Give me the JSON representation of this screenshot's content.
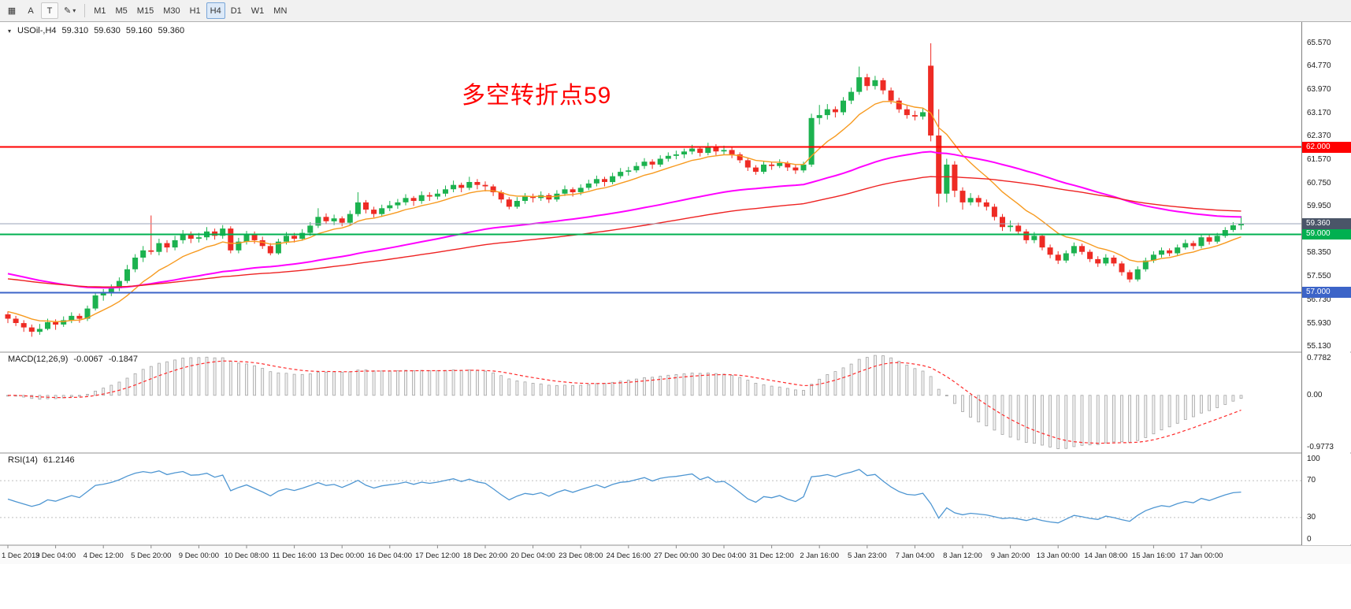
{
  "toolbar": {
    "buttons": [
      {
        "name": "charts",
        "glyph": "▦",
        "framed": false
      },
      {
        "name": "cursor-tool",
        "glyph": "A",
        "framed": false
      },
      {
        "name": "text-tool",
        "glyph": "T",
        "framed": true
      },
      {
        "name": "draw-tools",
        "glyph": "✎",
        "framed": false,
        "caret": true
      }
    ],
    "caret": "▾",
    "timeframes": [
      "M1",
      "M5",
      "M15",
      "M30",
      "H1",
      "H4",
      "D1",
      "W1",
      "MN"
    ],
    "active_timeframe": "H4"
  },
  "icons": {
    "title_marker": "▾"
  },
  "symbol_header": {
    "symbol": "USOil-,H4",
    "open": "59.310",
    "high": "59.630",
    "low": "59.160",
    "close": "59.360"
  },
  "annotation": {
    "text": "多空转折点59",
    "color": "#ff0000"
  },
  "price_axis": {
    "labels": [
      "65.570",
      "64.770",
      "63.970",
      "63.170",
      "62.370",
      "61.570",
      "60.750",
      "59.950",
      "58.350",
      "57.550",
      "56.730",
      "55.930",
      "55.130"
    ]
  },
  "levels": [
    {
      "price": 62.0,
      "label": "62.000",
      "color": "#ff0000",
      "width": 2
    },
    {
      "price": 59.0,
      "label": "59.000",
      "color": "#00b050",
      "width": 2
    },
    {
      "price": 57.0,
      "label": "57.000",
      "color": "#3c64c8",
      "width": 2
    }
  ],
  "bid_line": {
    "price": 59.36,
    "label": "59.360",
    "line_color": "#9aa3b8",
    "tag_color": "#4a5568"
  },
  "macd": {
    "label": "MACD(12,26,9)",
    "value_main": "-0.0067",
    "value_signal": "-0.1847",
    "fast": 12,
    "slow": 26,
    "signal": 9,
    "axis_labels": [
      "0.7782",
      "0.00",
      "-0.9773"
    ],
    "hist_fill": "#f2f2f2",
    "hist_stroke": "#a5a5a5",
    "signal_color": "#ff2a2a"
  },
  "rsi": {
    "label": "RSI(14)",
    "value": "61.2146",
    "period": 14,
    "axis_labels": [
      "100",
      "70",
      "30",
      "0"
    ],
    "dotted_levels": [
      70,
      30
    ],
    "line_color": "#4e96d2",
    "level_color": "#bfbfbf"
  },
  "chart_data": {
    "type": "candlestick",
    "symbol": "USOil-",
    "timeframe": "H4",
    "price_range": [
      54.95,
      66.3
    ],
    "up_color": "#1cb24f",
    "down_color": "#ee2b24",
    "label_every": 6,
    "time_labels": [
      "1 Dec 2019",
      "3 Dec 04:00",
      "4 Dec 12:00",
      "5 Dec 20:00",
      "9 Dec 00:00",
      "10 Dec 08:00",
      "11 Dec 16:00",
      "13 Dec 00:00",
      "16 Dec 04:00",
      "17 Dec 12:00",
      "18 Dec 20:00",
      "20 Dec 04:00",
      "23 Dec 08:00",
      "24 Dec 16:00",
      "27 Dec 00:00",
      "30 Dec 04:00",
      "31 Dec 12:00",
      "2 Jan 16:00",
      "5 Jan 23:00",
      "7 Jan 04:00",
      "8 Jan 12:00",
      "9 Jan 20:00",
      "13 Jan 00:00",
      "14 Jan 08:00",
      "15 Jan 16:00",
      "17 Jan 00:00"
    ],
    "moving_averages": [
      {
        "name": "fast-ma",
        "period": 10,
        "seed": 56.4,
        "color": "#f79a1f",
        "width": 1.4
      },
      {
        "name": "medium-ma",
        "period": 60,
        "seed": 57.7,
        "color": "#ff00ff",
        "width": 2
      },
      {
        "name": "slow-ma",
        "period": 100,
        "seed": 57.5,
        "color": "#ee2222",
        "width": 1.4
      }
    ],
    "candles": [
      [
        56.25,
        56.35,
        55.95,
        56.1
      ],
      [
        56.1,
        56.2,
        55.85,
        55.95
      ],
      [
        55.95,
        56.05,
        55.65,
        55.8
      ],
      [
        55.8,
        55.9,
        55.48,
        55.65
      ],
      [
        55.65,
        55.92,
        55.55,
        55.75
      ],
      [
        55.75,
        56.1,
        55.7,
        55.98
      ],
      [
        55.98,
        56.08,
        55.72,
        55.9
      ],
      [
        55.9,
        56.18,
        55.82,
        56.05
      ],
      [
        56.05,
        56.32,
        55.95,
        56.2
      ],
      [
        56.2,
        56.28,
        55.96,
        56.1
      ],
      [
        56.1,
        56.55,
        56.02,
        56.45
      ],
      [
        56.45,
        57.02,
        56.38,
        56.9
      ],
      [
        56.9,
        57.12,
        56.72,
        57.0
      ],
      [
        57.0,
        57.28,
        56.88,
        57.15
      ],
      [
        57.15,
        57.52,
        57.05,
        57.4
      ],
      [
        57.4,
        57.95,
        57.32,
        57.8
      ],
      [
        57.8,
        58.32,
        57.7,
        58.2
      ],
      [
        58.2,
        58.6,
        58.05,
        58.45
      ],
      [
        58.45,
        59.65,
        58.3,
        58.4
      ],
      [
        58.4,
        58.85,
        58.28,
        58.7
      ],
      [
        58.7,
        58.8,
        58.38,
        58.55
      ],
      [
        58.55,
        58.95,
        58.45,
        58.8
      ],
      [
        58.8,
        59.15,
        58.68,
        59.0
      ],
      [
        59.0,
        59.1,
        58.7,
        58.85
      ],
      [
        58.85,
        59.05,
        58.72,
        58.9
      ],
      [
        58.9,
        59.25,
        58.8,
        59.1
      ],
      [
        59.1,
        59.2,
        58.82,
        58.95
      ],
      [
        58.95,
        59.32,
        58.85,
        59.2
      ],
      [
        59.2,
        59.28,
        58.35,
        58.45
      ],
      [
        58.45,
        58.88,
        58.35,
        58.75
      ],
      [
        58.75,
        59.12,
        58.65,
        59.0
      ],
      [
        59.0,
        59.1,
        58.68,
        58.8
      ],
      [
        58.8,
        58.92,
        58.5,
        58.6
      ],
      [
        58.6,
        58.7,
        58.28,
        58.35
      ],
      [
        58.35,
        58.85,
        58.3,
        58.75
      ],
      [
        58.75,
        59.08,
        58.65,
        58.95
      ],
      [
        58.95,
        59.05,
        58.72,
        58.85
      ],
      [
        58.85,
        59.18,
        58.78,
        59.05
      ],
      [
        59.05,
        59.42,
        58.95,
        59.3
      ],
      [
        59.3,
        59.9,
        59.22,
        59.6
      ],
      [
        59.6,
        59.72,
        59.35,
        59.45
      ],
      [
        59.45,
        59.68,
        59.32,
        59.55
      ],
      [
        59.55,
        59.62,
        59.28,
        59.4
      ],
      [
        59.4,
        59.82,
        59.3,
        59.7
      ],
      [
        59.7,
        60.45,
        59.62,
        60.1
      ],
      [
        60.1,
        60.18,
        59.72,
        59.85
      ],
      [
        59.85,
        59.95,
        59.58,
        59.7
      ],
      [
        59.7,
        60.02,
        59.6,
        59.9
      ],
      [
        59.9,
        60.15,
        59.8,
        60.0
      ],
      [
        60.0,
        60.22,
        59.88,
        60.1
      ],
      [
        60.1,
        60.38,
        60.0,
        60.25
      ],
      [
        60.25,
        60.32,
        59.98,
        60.15
      ],
      [
        60.15,
        60.48,
        60.05,
        60.35
      ],
      [
        60.35,
        60.45,
        60.15,
        60.3
      ],
      [
        60.3,
        60.55,
        60.2,
        60.4
      ],
      [
        60.4,
        60.68,
        60.3,
        60.55
      ],
      [
        60.55,
        60.85,
        60.45,
        60.7
      ],
      [
        60.7,
        60.78,
        60.45,
        60.6
      ],
      [
        60.6,
        60.98,
        60.52,
        60.8
      ],
      [
        60.8,
        60.9,
        60.55,
        60.7
      ],
      [
        60.7,
        60.82,
        60.48,
        60.65
      ],
      [
        60.65,
        60.72,
        60.32,
        60.45
      ],
      [
        60.45,
        60.52,
        60.08,
        60.2
      ],
      [
        60.2,
        60.28,
        59.86,
        59.95
      ],
      [
        59.95,
        60.28,
        59.88,
        60.15
      ],
      [
        60.15,
        60.42,
        60.05,
        60.3
      ],
      [
        60.3,
        60.4,
        60.1,
        60.25
      ],
      [
        60.25,
        60.48,
        60.15,
        60.35
      ],
      [
        60.35,
        60.42,
        60.08,
        60.2
      ],
      [
        60.2,
        60.52,
        60.12,
        60.4
      ],
      [
        60.4,
        60.68,
        60.32,
        60.55
      ],
      [
        60.55,
        60.62,
        60.3,
        60.45
      ],
      [
        60.45,
        60.72,
        60.35,
        60.6
      ],
      [
        60.6,
        60.88,
        60.52,
        60.75
      ],
      [
        60.75,
        61.02,
        60.65,
        60.9
      ],
      [
        60.9,
        60.98,
        60.65,
        60.8
      ],
      [
        60.8,
        61.12,
        60.72,
        61.0
      ],
      [
        61.0,
        61.28,
        60.92,
        61.15
      ],
      [
        61.15,
        61.32,
        61.02,
        61.2
      ],
      [
        61.2,
        61.48,
        61.12,
        61.35
      ],
      [
        61.35,
        61.62,
        61.25,
        61.5
      ],
      [
        61.5,
        61.58,
        61.25,
        61.4
      ],
      [
        61.4,
        61.72,
        61.32,
        61.6
      ],
      [
        61.6,
        61.82,
        61.5,
        61.7
      ],
      [
        61.7,
        61.88,
        61.58,
        61.75
      ],
      [
        61.75,
        61.95,
        61.62,
        61.85
      ],
      [
        61.85,
        62.08,
        61.75,
        61.95
      ],
      [
        61.95,
        62.02,
        61.68,
        61.8
      ],
      [
        61.8,
        62.15,
        61.72,
        62.0
      ],
      [
        62.0,
        62.1,
        61.72,
        61.85
      ],
      [
        61.85,
        62.05,
        61.75,
        61.9
      ],
      [
        61.9,
        61.98,
        61.62,
        61.75
      ],
      [
        61.75,
        61.82,
        61.45,
        61.55
      ],
      [
        61.55,
        61.62,
        61.18,
        61.3
      ],
      [
        61.3,
        61.38,
        61.05,
        61.15
      ],
      [
        61.15,
        61.52,
        61.08,
        61.4
      ],
      [
        61.4,
        61.48,
        61.22,
        61.35
      ],
      [
        61.35,
        61.58,
        61.28,
        61.45
      ],
      [
        61.45,
        61.52,
        61.18,
        61.3
      ],
      [
        61.3,
        61.38,
        61.08,
        61.2
      ],
      [
        61.2,
        61.5,
        61.12,
        61.4
      ],
      [
        61.4,
        63.15,
        61.32,
        63.0
      ],
      [
        63.0,
        63.45,
        62.78,
        63.1
      ],
      [
        63.1,
        63.48,
        62.95,
        63.3
      ],
      [
        63.3,
        63.4,
        63.02,
        63.2
      ],
      [
        63.2,
        63.72,
        63.1,
        63.6
      ],
      [
        63.6,
        64.05,
        63.48,
        63.9
      ],
      [
        63.9,
        64.77,
        63.8,
        64.4
      ],
      [
        64.4,
        64.52,
        63.95,
        64.1
      ],
      [
        64.1,
        64.45,
        63.98,
        64.3
      ],
      [
        64.3,
        64.38,
        63.82,
        63.95
      ],
      [
        63.95,
        64.05,
        63.48,
        63.6
      ],
      [
        63.6,
        63.7,
        63.18,
        63.3
      ],
      [
        63.3,
        63.42,
        62.98,
        63.1
      ],
      [
        63.1,
        63.25,
        62.92,
        63.05
      ],
      [
        63.05,
        63.35,
        62.95,
        63.2
      ],
      [
        64.8,
        65.57,
        62.2,
        62.4
      ],
      [
        62.4,
        63.3,
        59.95,
        60.4
      ],
      [
        60.4,
        61.6,
        60.1,
        61.4
      ],
      [
        61.4,
        61.52,
        60.28,
        60.5
      ],
      [
        60.5,
        60.62,
        59.85,
        60.1
      ],
      [
        60.1,
        60.42,
        60.0,
        60.25
      ],
      [
        60.25,
        60.35,
        59.95,
        60.1
      ],
      [
        60.1,
        60.2,
        59.82,
        59.95
      ],
      [
        59.95,
        60.05,
        59.48,
        59.6
      ],
      [
        59.6,
        59.7,
        59.12,
        59.25
      ],
      [
        59.25,
        59.48,
        59.1,
        59.3
      ],
      [
        59.3,
        59.4,
        58.98,
        59.1
      ],
      [
        59.1,
        59.18,
        58.68,
        58.8
      ],
      [
        58.8,
        59.08,
        58.7,
        58.95
      ],
      [
        58.95,
        59.02,
        58.45,
        58.55
      ],
      [
        58.55,
        58.65,
        58.18,
        58.3
      ],
      [
        58.3,
        58.42,
        57.98,
        58.1
      ],
      [
        58.1,
        58.45,
        58.02,
        58.35
      ],
      [
        58.35,
        58.72,
        58.25,
        58.6
      ],
      [
        58.6,
        58.68,
        58.3,
        58.4
      ],
      [
        58.4,
        58.48,
        58.05,
        58.15
      ],
      [
        58.15,
        58.25,
        57.88,
        58.0
      ],
      [
        58.0,
        58.32,
        57.92,
        58.2
      ],
      [
        58.2,
        58.28,
        57.9,
        58.0
      ],
      [
        58.0,
        58.08,
        57.58,
        57.7
      ],
      [
        57.7,
        57.78,
        57.35,
        57.45
      ],
      [
        57.45,
        57.9,
        57.38,
        57.8
      ],
      [
        57.8,
        58.2,
        57.72,
        58.1
      ],
      [
        58.1,
        58.42,
        58.02,
        58.3
      ],
      [
        58.3,
        58.55,
        58.2,
        58.45
      ],
      [
        58.45,
        58.52,
        58.25,
        58.35
      ],
      [
        58.35,
        58.65,
        58.28,
        58.55
      ],
      [
        58.55,
        58.82,
        58.48,
        58.7
      ],
      [
        58.7,
        58.78,
        58.48,
        58.6
      ],
      [
        58.6,
        58.98,
        58.52,
        58.9
      ],
      [
        58.9,
        58.98,
        58.65,
        58.75
      ],
      [
        58.75,
        59.05,
        58.68,
        58.95
      ],
      [
        58.95,
        59.25,
        58.88,
        59.15
      ],
      [
        59.15,
        59.42,
        59.08,
        59.31
      ],
      [
        59.31,
        59.63,
        59.16,
        59.36
      ]
    ]
  }
}
